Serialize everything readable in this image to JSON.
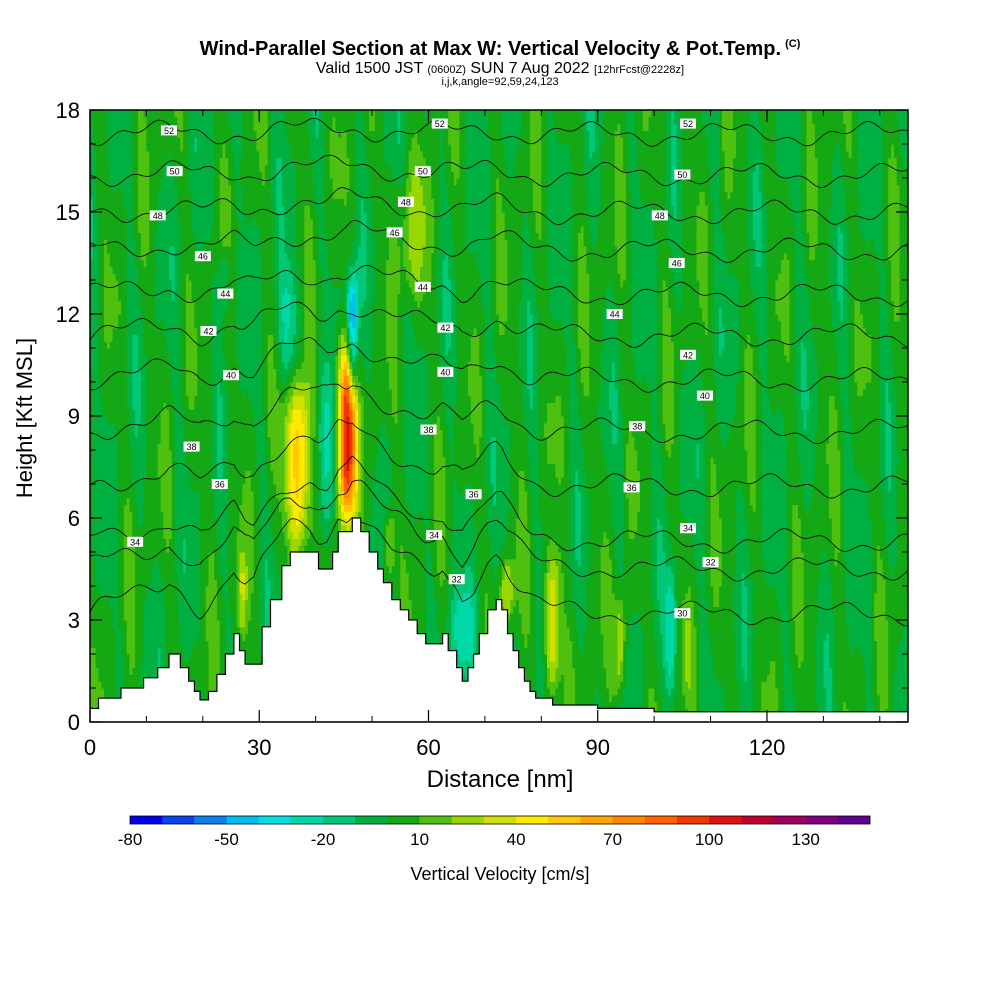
{
  "header": {
    "title": "Wind-Parallel Section at Max W: Vertical Velocity & Pot.Temp.",
    "title_mark": "(C)",
    "subtitle_valid": "Valid 1500 JST",
    "subtitle_utc": "(0600Z)",
    "subtitle_date": "SUN 7 Aug 2022",
    "subtitle_fcst": "[12hrFcst@2228z]",
    "subtitle2": "i,j,k,angle=92,59,24,123"
  },
  "chart_data": {
    "type": "heatmap",
    "xlabel": "Distance [nm]",
    "ylabel": "Height [Kft MSL]",
    "xlim": [
      0,
      145
    ],
    "ylim": [
      0,
      18
    ],
    "x_ticks": [
      "0",
      "30",
      "60",
      "90",
      "120"
    ],
    "y_ticks": [
      "0",
      "3",
      "6",
      "9",
      "12",
      "15",
      "18"
    ],
    "colorbar": {
      "title": "Vertical Velocity [cm/s]",
      "tick_labels": [
        "-80",
        "-50",
        "-20",
        "10",
        "40",
        "70",
        "100",
        "130"
      ],
      "colors": [
        "#0000ee",
        "#0a40ee",
        "#0a80ee",
        "#00bfee",
        "#00e0e0",
        "#00d8a8",
        "#00c878",
        "#00b040",
        "#14a814",
        "#50c010",
        "#98d800",
        "#d0e000",
        "#ffea00",
        "#ffc800",
        "#ffa800",
        "#ff8800",
        "#ff6000",
        "#f03800",
        "#e01010",
        "#c00030",
        "#a00060",
        "#800080",
        "#600090"
      ]
    },
    "terrain": [
      [
        0,
        0.4
      ],
      [
        1.5,
        0.7
      ],
      [
        5.5,
        1
      ],
      [
        9.5,
        1.3
      ],
      [
        12,
        1.6
      ],
      [
        14,
        2
      ],
      [
        16,
        1.6
      ],
      [
        17.5,
        1.2
      ],
      [
        18.5,
        0.9
      ],
      [
        19.5,
        0.65
      ],
      [
        21,
        0.9
      ],
      [
        22.5,
        1.4
      ],
      [
        24,
        2
      ],
      [
        25.5,
        2.6
      ],
      [
        26.5,
        2.1
      ],
      [
        27.5,
        1.7
      ],
      [
        29,
        1.7
      ],
      [
        30.5,
        2.8
      ],
      [
        32,
        3.6
      ],
      [
        34,
        4.6
      ],
      [
        35.5,
        5
      ],
      [
        39,
        5
      ],
      [
        40.5,
        4.5
      ],
      [
        42,
        4.5
      ],
      [
        43,
        5
      ],
      [
        44,
        5.6
      ],
      [
        45.5,
        5.6
      ],
      [
        46.5,
        6
      ],
      [
        48,
        5.6
      ],
      [
        49.5,
        5
      ],
      [
        51,
        4.5
      ],
      [
        52,
        4.1
      ],
      [
        53.5,
        3.6
      ],
      [
        55,
        3.3
      ],
      [
        56.5,
        3
      ],
      [
        58,
        2.6
      ],
      [
        59.5,
        2.3
      ],
      [
        61,
        2.3
      ],
      [
        62.5,
        2.6
      ],
      [
        63.5,
        2.1
      ],
      [
        65,
        1.6
      ],
      [
        66,
        1.2
      ],
      [
        67,
        1.6
      ],
      [
        68,
        2
      ],
      [
        69,
        2.6
      ],
      [
        70.5,
        3.3
      ],
      [
        72,
        3.6
      ],
      [
        73,
        3.3
      ],
      [
        74,
        2.6
      ],
      [
        75,
        2.1
      ],
      [
        76,
        1.6
      ],
      [
        77,
        1.2
      ],
      [
        78,
        0.9
      ],
      [
        79,
        0.7
      ],
      [
        82,
        0.5
      ],
      [
        90,
        0.4
      ],
      [
        100,
        0.3
      ],
      [
        145,
        0.3
      ]
    ],
    "theta_contours": [
      {
        "label": "30",
        "y": 3.3,
        "terrain_follow": 0.55
      },
      {
        "label": "32",
        "y": 4.6,
        "terrain_follow": 0.45
      },
      {
        "label": "34",
        "y": 5.4,
        "terrain_follow": 0.38
      },
      {
        "label": "36",
        "y": 7.0,
        "terrain_follow": 0.3
      },
      {
        "label": "38",
        "y": 8.6,
        "terrain_follow": 0.24
      },
      {
        "label": "40",
        "y": 10.1,
        "terrain_follow": 0.2
      },
      {
        "label": "42",
        "y": 11.4,
        "terrain_follow": 0.16
      },
      {
        "label": "44",
        "y": 12.6,
        "terrain_follow": 0.13
      },
      {
        "label": "46",
        "y": 13.9,
        "terrain_follow": 0.1
      },
      {
        "label": "48",
        "y": 15.0,
        "terrain_follow": 0.07
      },
      {
        "label": "50",
        "y": 16.1,
        "terrain_follow": 0.05
      },
      {
        "label": "52",
        "y": 17.3,
        "terrain_follow": 0.03
      }
    ],
    "contour_labels": [
      {
        "text": "52",
        "x": 14,
        "y": 17.4
      },
      {
        "text": "52",
        "x": 62,
        "y": 17.6
      },
      {
        "text": "52",
        "x": 106,
        "y": 17.6
      },
      {
        "text": "50",
        "x": 15,
        "y": 16.2
      },
      {
        "text": "50",
        "x": 59,
        "y": 16.2
      },
      {
        "text": "50",
        "x": 105,
        "y": 16.1
      },
      {
        "text": "48",
        "x": 12,
        "y": 14.9
      },
      {
        "text": "48",
        "x": 56,
        "y": 15.3
      },
      {
        "text": "48",
        "x": 101,
        "y": 14.9
      },
      {
        "text": "46",
        "x": 20,
        "y": 13.7
      },
      {
        "text": "46",
        "x": 54,
        "y": 14.4
      },
      {
        "text": "46",
        "x": 104,
        "y": 13.5
      },
      {
        "text": "44",
        "x": 24,
        "y": 12.6
      },
      {
        "text": "44",
        "x": 59,
        "y": 12.8
      },
      {
        "text": "44",
        "x": 93,
        "y": 12.0
      },
      {
        "text": "42",
        "x": 21,
        "y": 11.5
      },
      {
        "text": "42",
        "x": 63,
        "y": 11.6
      },
      {
        "text": "42",
        "x": 106,
        "y": 10.8
      },
      {
        "text": "40",
        "x": 25,
        "y": 10.2
      },
      {
        "text": "40",
        "x": 63,
        "y": 10.3
      },
      {
        "text": "40",
        "x": 109,
        "y": 9.6
      },
      {
        "text": "38",
        "x": 18,
        "y": 8.1
      },
      {
        "text": "38",
        "x": 60,
        "y": 8.6
      },
      {
        "text": "38",
        "x": 97,
        "y": 8.7
      },
      {
        "text": "36",
        "x": 23,
        "y": 7.0
      },
      {
        "text": "36",
        "x": 68,
        "y": 6.7
      },
      {
        "text": "36",
        "x": 96,
        "y": 6.9
      },
      {
        "text": "34",
        "x": 8,
        "y": 5.3
      },
      {
        "text": "34",
        "x": 61,
        "y": 5.5
      },
      {
        "text": "34",
        "x": 106,
        "y": 5.7
      },
      {
        "text": "32",
        "x": 65,
        "y": 4.2
      },
      {
        "text": "32",
        "x": 110,
        "y": 4.7
      },
      {
        "text": "30",
        "x": 105,
        "y": 3.2
      }
    ],
    "updrafts": [
      {
        "x": 45.5,
        "y0": 5.8,
        "y1": 11.2,
        "w": 1.6,
        "peak": 108
      },
      {
        "x": 37,
        "y0": 5,
        "y1": 10.2,
        "w": 2.2,
        "peak": 62
      },
      {
        "x": 82,
        "y0": 0.8,
        "y1": 5,
        "w": 1.3,
        "peak": 48
      },
      {
        "x": 94,
        "y0": 0.8,
        "y1": 3.8,
        "w": 1.0,
        "peak": 32
      },
      {
        "x": 53,
        "y0": 4,
        "y1": 6.4,
        "w": 1.0,
        "peak": 28
      },
      {
        "x": 74,
        "y0": 3,
        "y1": 4.8,
        "w": 1.2,
        "peak": 30
      },
      {
        "x": 27,
        "y0": 2.4,
        "y1": 5,
        "w": 0.9,
        "peak": 30
      },
      {
        "x": 106,
        "y0": 0.8,
        "y1": 3.4,
        "w": 0.9,
        "peak": 14
      },
      {
        "x": 57,
        "y0": 12.5,
        "y1": 16.5,
        "w": 3.0,
        "peak": 20
      }
    ],
    "downdrafts": [
      {
        "x": 46.5,
        "y0": 9.5,
        "y1": 13.2,
        "w": 1.0,
        "peak": -62
      },
      {
        "x": 42,
        "y0": 5,
        "y1": 10,
        "w": 2.2,
        "peak": -22
      },
      {
        "x": 35,
        "y0": 9.5,
        "y1": 13.5,
        "w": 1.8,
        "peak": -22
      },
      {
        "x": 66,
        "y0": 1.2,
        "y1": 4.0,
        "w": 2.4,
        "peak": -22
      },
      {
        "x": 103,
        "y0": 0.8,
        "y1": 4.5,
        "w": 1.0,
        "peak": -28
      },
      {
        "x": 24,
        "y0": 12,
        "y1": 14,
        "w": 1.0,
        "peak": -20
      }
    ]
  }
}
